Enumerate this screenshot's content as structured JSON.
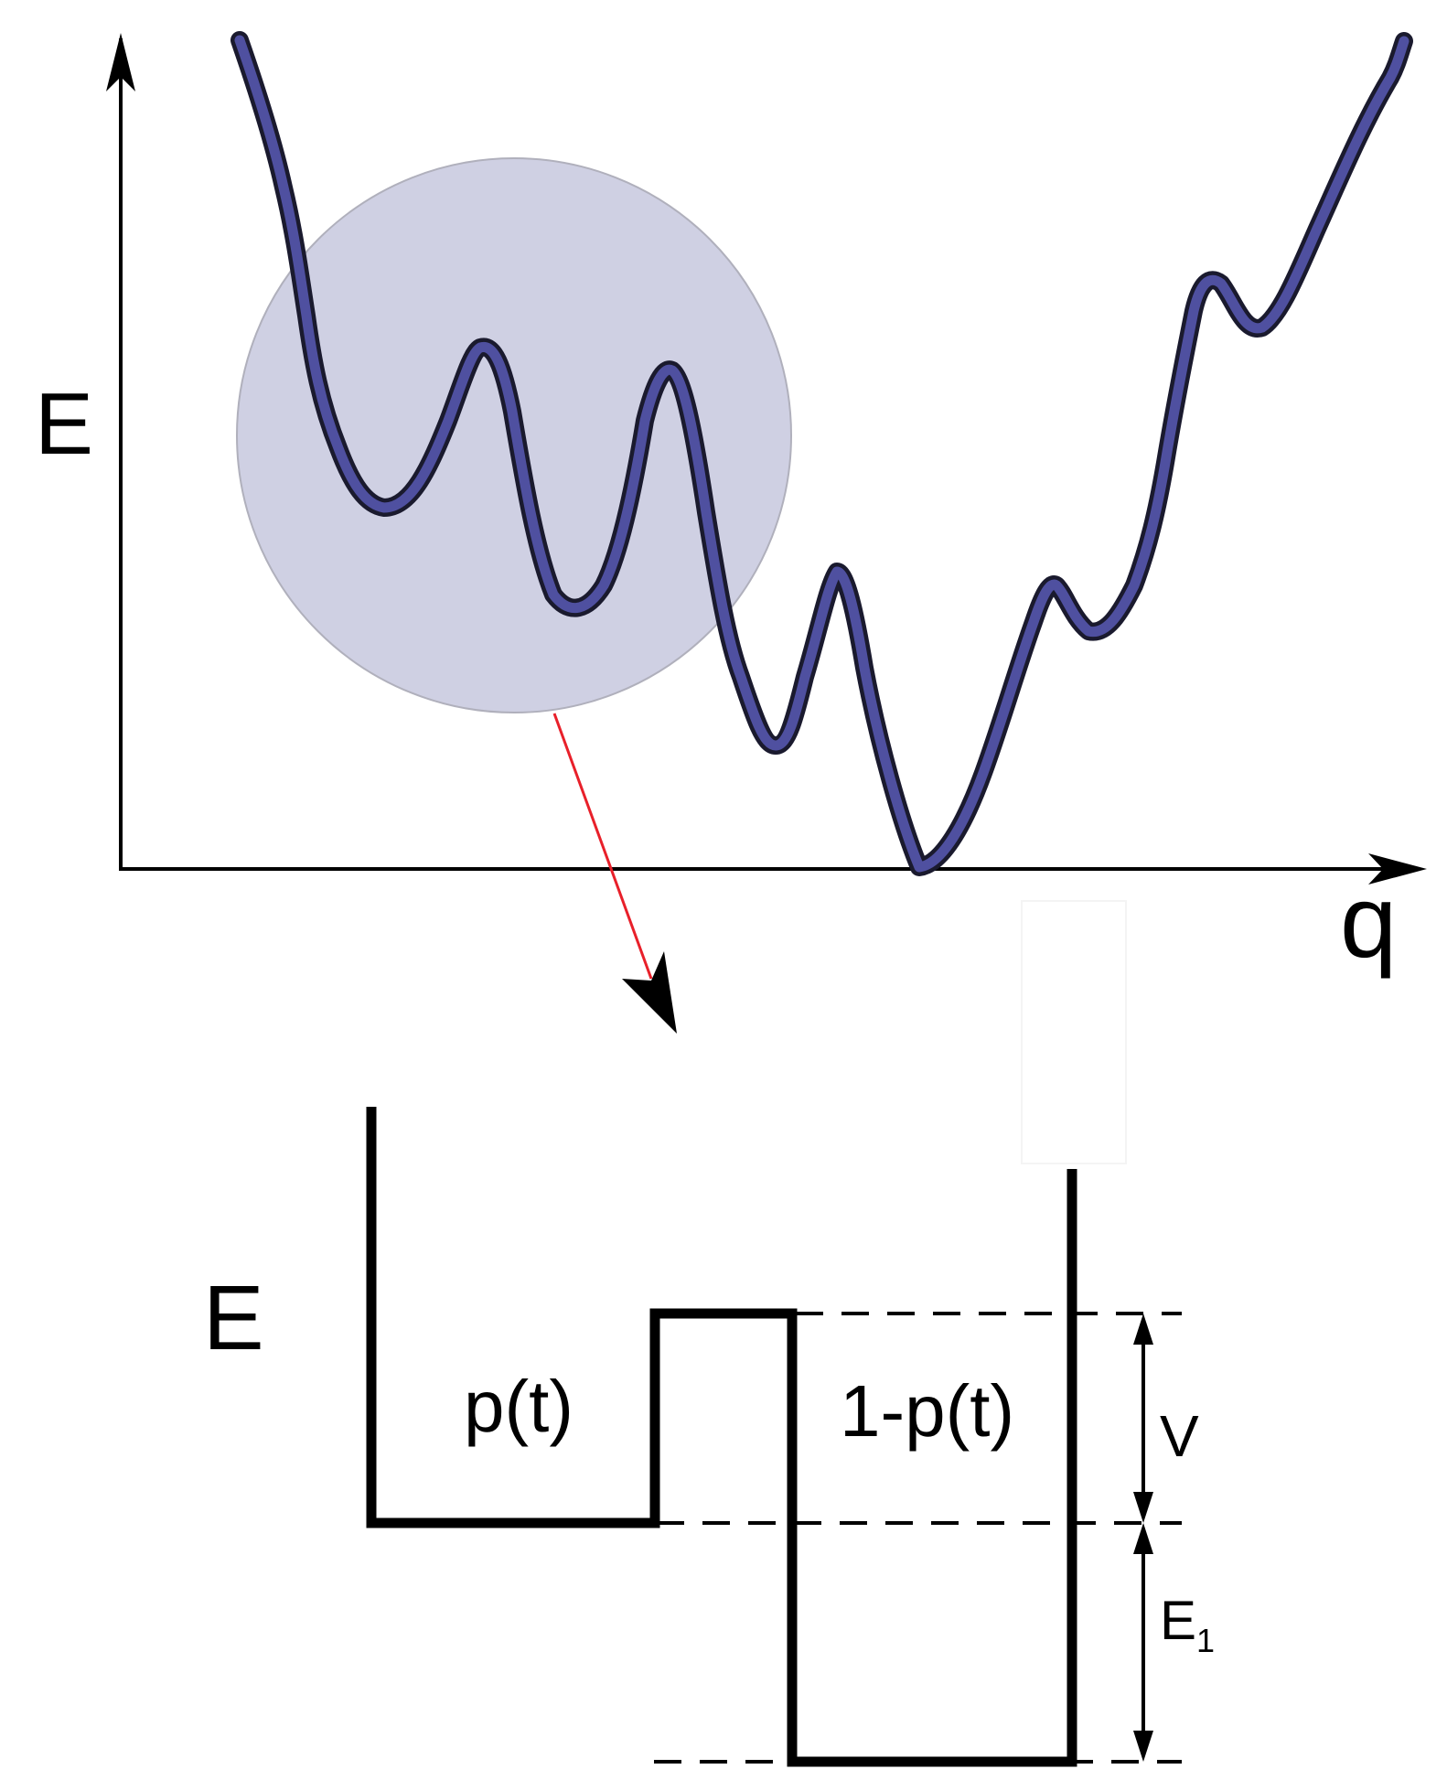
{
  "top_panel": {
    "y_axis_label": "E",
    "x_axis_label": "q"
  },
  "bottom_panel": {
    "y_axis_label": "E",
    "left_well_label": "p(t)",
    "right_well_label": "1-p(t)",
    "barrier_height_label": "V",
    "well_depth_label_main": "E",
    "well_depth_label_sub": "1"
  },
  "colors": {
    "landscape_curve": "#4f50a0",
    "landscape_outline": "#1a1a2e",
    "highlight_circle": "#cfd0e3",
    "zoom_arrow": "#e8202a",
    "ink": "#000000"
  }
}
